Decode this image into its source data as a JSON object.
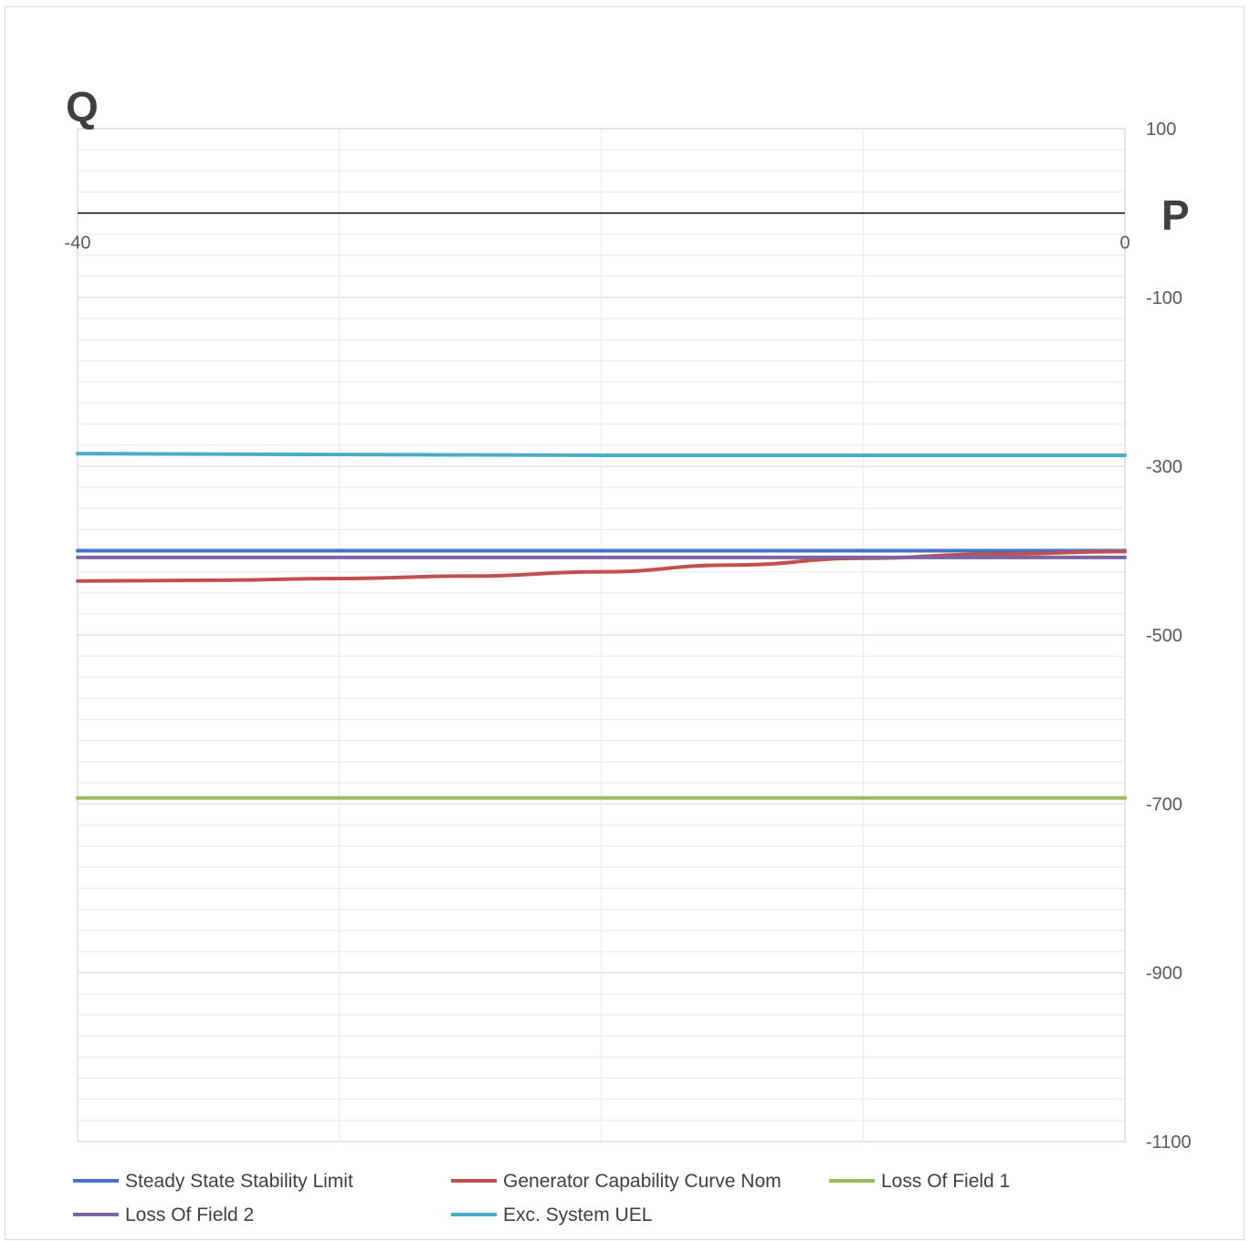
{
  "chart_data": {
    "type": "line",
    "xlabel": "P",
    "ylabel": "Q",
    "xlim": [
      -40,
      0
    ],
    "ylim": [
      -1100,
      100
    ],
    "x_ticks": [
      "-40",
      "0"
    ],
    "y_ticks": [
      "100",
      "-100",
      "-300",
      "-500",
      "-700",
      "-900",
      "-1100"
    ],
    "y_tick_values": [
      100,
      -100,
      -300,
      -500,
      -700,
      -900,
      -1100
    ],
    "grid": true,
    "legend_position": "bottom",
    "series": [
      {
        "name": "Steady State Stability Limit",
        "color": "#4472c4",
        "x": [
          -40,
          -30,
          -20,
          -10,
          0
        ],
        "y": [
          -400,
          -400,
          -400,
          -400,
          -400
        ]
      },
      {
        "name": "Generator Capability Curve Nom",
        "color": "#c0504d",
        "x": [
          -40,
          -35,
          -30,
          -25,
          -20,
          -15,
          -10,
          -5,
          0
        ],
        "y": [
          -436,
          -435,
          -433,
          -430,
          -425,
          -417,
          -409,
          -404,
          -401
        ]
      },
      {
        "name": "Loss Of Field 1",
        "color": "#9bbb59",
        "x": [
          -40,
          -30,
          -20,
          -10,
          0
        ],
        "y": [
          -693,
          -693,
          -693,
          -693,
          -693
        ]
      },
      {
        "name": "Loss Of Field 2",
        "color": "#8064a2",
        "x": [
          -40,
          -30,
          -20,
          -10,
          0
        ],
        "y": [
          -408,
          -408,
          -408,
          -408,
          -408
        ]
      },
      {
        "name": "Exc. System UEL",
        "color": "#4bacc6",
        "x": [
          -40,
          -30,
          -20,
          -10,
          0
        ],
        "y": [
          -285,
          -286,
          -287,
          -287,
          -287
        ]
      }
    ]
  }
}
